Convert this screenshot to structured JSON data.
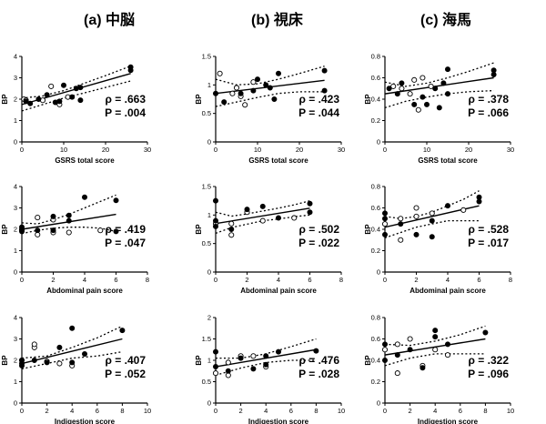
{
  "column_titles": [
    "(a) 中脳",
    "(b) 視床",
    "(c) 海馬"
  ],
  "chart_data": [
    {
      "type": "scatter",
      "panel": "a-GSRS",
      "ylabel": "BP",
      "xlabel": "GSRS total score",
      "xlim": [
        0,
        30
      ],
      "xticks": [
        0,
        10,
        20,
        30
      ],
      "ylim": [
        0,
        4
      ],
      "yticks": [
        0,
        1,
        2,
        3,
        4
      ],
      "rho": "ρ = .663",
      "p": "P = .004",
      "fit": [
        [
          0,
          1.75
        ],
        [
          26,
          3.2
        ]
      ],
      "ci_upper": [
        [
          0,
          2.05
        ],
        [
          5,
          2.15
        ],
        [
          10,
          2.4
        ],
        [
          15,
          2.75
        ],
        [
          20,
          3.1
        ],
        [
          26,
          3.55
        ]
      ],
      "ci_lower": [
        [
          0,
          1.45
        ],
        [
          5,
          1.75
        ],
        [
          10,
          2.05
        ],
        [
          15,
          2.3
        ],
        [
          20,
          2.55
        ],
        [
          26,
          2.85
        ]
      ],
      "filled": [
        [
          1,
          1.9
        ],
        [
          2,
          1.8
        ],
        [
          4,
          2.0
        ],
        [
          6,
          2.2
        ],
        [
          8,
          1.85
        ],
        [
          9,
          1.9
        ],
        [
          10,
          2.65
        ],
        [
          12,
          2.1
        ],
        [
          13,
          2.5
        ],
        [
          14,
          2.55
        ],
        [
          14,
          1.95
        ],
        [
          26,
          3.35
        ],
        [
          26,
          3.5
        ]
      ],
      "open": [
        [
          0.5,
          2.0
        ],
        [
          1,
          1.95
        ],
        [
          5,
          1.95
        ],
        [
          7,
          2.6
        ],
        [
          9,
          1.75
        ],
        [
          11,
          2.1
        ]
      ]
    },
    {
      "type": "scatter",
      "panel": "b-GSRS",
      "ylabel": "BP",
      "xlabel": "GSRS total score",
      "xlim": [
        0,
        30
      ],
      "xticks": [
        0,
        10,
        20,
        30
      ],
      "ylim": [
        0,
        1.5
      ],
      "yticks": [
        0.0,
        0.5,
        1.0,
        1.5
      ],
      "rho": "ρ = .423",
      "p": "P = .044",
      "fit": [
        [
          0,
          0.85
        ],
        [
          26,
          1.08
        ]
      ],
      "ci_upper": [
        [
          0,
          1.1
        ],
        [
          5,
          1.0
        ],
        [
          10,
          1.02
        ],
        [
          15,
          1.1
        ],
        [
          20,
          1.2
        ],
        [
          26,
          1.33
        ]
      ],
      "ci_lower": [
        [
          0,
          0.62
        ],
        [
          5,
          0.7
        ],
        [
          10,
          0.78
        ],
        [
          15,
          0.85
        ],
        [
          20,
          0.88
        ],
        [
          26,
          0.88
        ]
      ],
      "filled": [
        [
          0,
          0.85
        ],
        [
          2,
          0.7
        ],
        [
          6,
          0.85
        ],
        [
          9,
          0.9
        ],
        [
          10,
          1.1
        ],
        [
          12,
          1.0
        ],
        [
          13,
          0.95
        ],
        [
          14,
          0.75
        ],
        [
          15,
          1.2
        ],
        [
          26,
          1.25
        ],
        [
          26,
          0.9
        ]
      ],
      "open": [
        [
          1,
          1.2
        ],
        [
          4,
          0.85
        ],
        [
          5,
          0.95
        ],
        [
          6,
          0.8
        ],
        [
          7,
          0.65
        ],
        [
          9,
          1.05
        ]
      ]
    },
    {
      "type": "scatter",
      "panel": "c-GSRS",
      "ylabel": "BP",
      "xlabel": "GSRS total score",
      "xlim": [
        0,
        30
      ],
      "xticks": [
        0,
        10,
        20,
        30
      ],
      "ylim": [
        0,
        0.8
      ],
      "yticks": [
        0.0,
        0.2,
        0.4,
        0.6,
        0.8
      ],
      "rho": "ρ = .378",
      "p": "P = .066",
      "fit": [
        [
          0,
          0.45
        ],
        [
          26,
          0.6
        ]
      ],
      "ci_upper": [
        [
          0,
          0.56
        ],
        [
          5,
          0.52
        ],
        [
          10,
          0.55
        ],
        [
          15,
          0.6
        ],
        [
          20,
          0.66
        ],
        [
          26,
          0.74
        ]
      ],
      "ci_lower": [
        [
          0,
          0.32
        ],
        [
          5,
          0.38
        ],
        [
          10,
          0.42
        ],
        [
          15,
          0.45
        ],
        [
          20,
          0.47
        ],
        [
          26,
          0.48
        ]
      ],
      "filled": [
        [
          1,
          0.5
        ],
        [
          3,
          0.45
        ],
        [
          4,
          0.55
        ],
        [
          7,
          0.35
        ],
        [
          9,
          0.42
        ],
        [
          10,
          0.35
        ],
        [
          12,
          0.5
        ],
        [
          13,
          0.32
        ],
        [
          14,
          0.55
        ],
        [
          15,
          0.68
        ],
        [
          15,
          0.45
        ],
        [
          26,
          0.63
        ],
        [
          26,
          0.67
        ]
      ],
      "open": [
        [
          2,
          0.52
        ],
        [
          4,
          0.5
        ],
        [
          6,
          0.45
        ],
        [
          7,
          0.58
        ],
        [
          8,
          0.3
        ],
        [
          9,
          0.6
        ],
        [
          11,
          0.52
        ]
      ]
    },
    {
      "type": "scatter",
      "panel": "a-Abdominal",
      "ylabel": "BP",
      "xlabel": "Abdominal pain score",
      "xlim": [
        0,
        8
      ],
      "xticks": [
        0,
        2,
        4,
        6,
        8
      ],
      "ylim": [
        0,
        4
      ],
      "yticks": [
        0,
        1,
        2,
        3,
        4
      ],
      "rho": "ρ = .419",
      "p": "P = .047",
      "fit": [
        [
          0,
          2.0
        ],
        [
          6,
          2.7
        ]
      ],
      "ci_upper": [
        [
          0,
          2.3
        ],
        [
          1,
          2.25
        ],
        [
          2,
          2.45
        ],
        [
          3,
          2.7
        ],
        [
          4,
          3.0
        ],
        [
          5,
          3.3
        ],
        [
          6,
          3.6
        ]
      ],
      "ci_lower": [
        [
          0,
          1.8
        ],
        [
          1,
          1.95
        ],
        [
          2,
          2.05
        ],
        [
          3,
          2.1
        ],
        [
          4,
          2.1
        ],
        [
          5,
          2.05
        ],
        [
          6,
          1.9
        ]
      ],
      "filled": [
        [
          0,
          1.9
        ],
        [
          0,
          2.0
        ],
        [
          0,
          2.1
        ],
        [
          1,
          1.95
        ],
        [
          2,
          2.6
        ],
        [
          2,
          1.95
        ],
        [
          3,
          2.4
        ],
        [
          3,
          2.65
        ],
        [
          4,
          3.5
        ],
        [
          6,
          1.9
        ],
        [
          6,
          3.35
        ]
      ],
      "open": [
        [
          0,
          1.95
        ],
        [
          1,
          2.55
        ],
        [
          1,
          1.75
        ],
        [
          2,
          1.85
        ],
        [
          2,
          2.45
        ],
        [
          3,
          1.85
        ],
        [
          5,
          1.95
        ]
      ]
    },
    {
      "type": "scatter",
      "panel": "b-Abdominal",
      "ylabel": "BP",
      "xlabel": "Abdominal pain score",
      "xlim": [
        0,
        8
      ],
      "xticks": [
        0,
        2,
        4,
        6,
        8
      ],
      "ylim": [
        0,
        1.5
      ],
      "yticks": [
        0.0,
        0.5,
        1.0,
        1.5
      ],
      "rho": "ρ = .502",
      "p": "P = .022",
      "fit": [
        [
          0,
          0.85
        ],
        [
          6,
          1.12
        ]
      ],
      "ci_upper": [
        [
          0,
          1.05
        ],
        [
          1,
          0.98
        ],
        [
          2,
          1.02
        ],
        [
          3,
          1.07
        ],
        [
          4,
          1.12
        ],
        [
          5,
          1.18
        ],
        [
          6,
          1.25
        ]
      ],
      "ci_lower": [
        [
          0,
          0.68
        ],
        [
          1,
          0.78
        ],
        [
          2,
          0.84
        ],
        [
          3,
          0.9
        ],
        [
          4,
          0.93
        ],
        [
          5,
          0.97
        ],
        [
          6,
          1.0
        ]
      ],
      "filled": [
        [
          0,
          1.25
        ],
        [
          0,
          0.9
        ],
        [
          0,
          0.8
        ],
        [
          1,
          0.75
        ],
        [
          2,
          1.1
        ],
        [
          3,
          1.15
        ],
        [
          4,
          0.95
        ],
        [
          6,
          1.05
        ],
        [
          6,
          1.2
        ]
      ],
      "open": [
        [
          0,
          0.85
        ],
        [
          1,
          0.85
        ],
        [
          1,
          0.65
        ],
        [
          2,
          1.05
        ],
        [
          3,
          0.9
        ],
        [
          5,
          0.95
        ]
      ]
    },
    {
      "type": "scatter",
      "panel": "c-Abdominal",
      "ylabel": "BP",
      "xlabel": "Abdominal pain score",
      "xlim": [
        0,
        8
      ],
      "xticks": [
        0,
        2,
        4,
        6,
        8
      ],
      "ylim": [
        0,
        0.8
      ],
      "yticks": [
        0.0,
        0.2,
        0.4,
        0.6,
        0.8
      ],
      "rho": "ρ = .528",
      "p": "P = .017",
      "fit": [
        [
          0,
          0.42
        ],
        [
          6,
          0.62
        ]
      ],
      "ci_upper": [
        [
          0,
          0.52
        ],
        [
          1,
          0.5
        ],
        [
          2,
          0.52
        ],
        [
          3,
          0.56
        ],
        [
          4,
          0.62
        ],
        [
          5,
          0.68
        ],
        [
          6,
          0.76
        ]
      ],
      "ci_lower": [
        [
          0,
          0.32
        ],
        [
          1,
          0.37
        ],
        [
          2,
          0.42
        ],
        [
          3,
          0.45
        ],
        [
          4,
          0.48
        ],
        [
          5,
          0.48
        ],
        [
          6,
          0.48
        ]
      ],
      "filled": [
        [
          0,
          0.55
        ],
        [
          0,
          0.35
        ],
        [
          0,
          0.5
        ],
        [
          1,
          0.45
        ],
        [
          2,
          0.35
        ],
        [
          3,
          0.48
        ],
        [
          3,
          0.33
        ],
        [
          4,
          0.62
        ],
        [
          6,
          0.66
        ],
        [
          6,
          0.7
        ]
      ],
      "open": [
        [
          0,
          0.45
        ],
        [
          1,
          0.5
        ],
        [
          1,
          0.3
        ],
        [
          2,
          0.6
        ],
        [
          2,
          0.52
        ],
        [
          3,
          0.55
        ],
        [
          5,
          0.58
        ]
      ]
    },
    {
      "type": "scatter",
      "panel": "a-Indigestion",
      "ylabel": "BP",
      "xlabel": "Indigestion score",
      "xlim": [
        0,
        10
      ],
      "xticks": [
        0,
        2,
        4,
        6,
        8,
        10
      ],
      "ylim": [
        0,
        4
      ],
      "yticks": [
        0,
        1,
        2,
        3,
        4
      ],
      "rho": "ρ = .407",
      "p": "P = .052",
      "fit": [
        [
          0,
          1.85
        ],
        [
          8,
          3.0
        ]
      ],
      "ci_upper": [
        [
          0,
          2.1
        ],
        [
          2,
          2.2
        ],
        [
          4,
          2.6
        ],
        [
          6,
          3.05
        ],
        [
          8,
          3.6
        ]
      ],
      "ci_lower": [
        [
          0,
          1.6
        ],
        [
          2,
          1.85
        ],
        [
          4,
          2.1
        ],
        [
          6,
          2.2
        ],
        [
          8,
          2.4
        ]
      ],
      "filled": [
        [
          0,
          1.85
        ],
        [
          0,
          2.0
        ],
        [
          0,
          1.75
        ],
        [
          1,
          2.0
        ],
        [
          2,
          1.9
        ],
        [
          3,
          2.6
        ],
        [
          4,
          3.5
        ],
        [
          4,
          1.9
        ],
        [
          5,
          2.3
        ],
        [
          8,
          3.4
        ]
      ],
      "open": [
        [
          0,
          2.0
        ],
        [
          1,
          2.6
        ],
        [
          1,
          2.75
        ],
        [
          2,
          1.95
        ],
        [
          3,
          1.85
        ],
        [
          4,
          1.75
        ]
      ]
    },
    {
      "type": "scatter",
      "panel": "b-Indigestion",
      "ylabel": "BP",
      "xlabel": "Indigestion score",
      "xlim": [
        0,
        10
      ],
      "xticks": [
        0,
        2,
        4,
        6,
        8,
        10
      ],
      "ylim": [
        0,
        2.0
      ],
      "yticks": [
        0.0,
        0.5,
        1.0,
        1.5,
        2.0
      ],
      "rho": "ρ = .476",
      "p": "P = .028",
      "fit": [
        [
          0,
          0.85
        ],
        [
          8,
          1.25
        ]
      ],
      "ci_upper": [
        [
          0,
          1.05
        ],
        [
          2,
          1.05
        ],
        [
          4,
          1.15
        ],
        [
          6,
          1.32
        ],
        [
          8,
          1.5
        ]
      ],
      "ci_lower": [
        [
          0,
          0.65
        ],
        [
          2,
          0.82
        ],
        [
          4,
          0.95
        ],
        [
          6,
          1.0
        ],
        [
          8,
          1.0
        ]
      ],
      "filled": [
        [
          0,
          1.2
        ],
        [
          0,
          0.85
        ],
        [
          1,
          0.75
        ],
        [
          2,
          1.05
        ],
        [
          3,
          0.8
        ],
        [
          4,
          1.1
        ],
        [
          4,
          0.9
        ],
        [
          5,
          1.2
        ],
        [
          8,
          1.22
        ]
      ],
      "open": [
        [
          0,
          0.7
        ],
        [
          1,
          0.95
        ],
        [
          1,
          0.65
        ],
        [
          2,
          1.1
        ],
        [
          3,
          1.1
        ],
        [
          4,
          0.85
        ]
      ]
    },
    {
      "type": "scatter",
      "panel": "c-Indigestion",
      "ylabel": "BP",
      "xlabel": "Indigestion score",
      "xlim": [
        0,
        10
      ],
      "xticks": [
        0,
        2,
        4,
        6,
        8,
        10
      ],
      "ylim": [
        0,
        0.8
      ],
      "yticks": [
        0.0,
        0.2,
        0.4,
        0.6,
        0.8
      ],
      "rho": "ρ = .322",
      "p": "P = .096",
      "fit": [
        [
          0,
          0.45
        ],
        [
          8,
          0.6
        ]
      ],
      "ci_upper": [
        [
          0,
          0.55
        ],
        [
          2,
          0.54
        ],
        [
          4,
          0.58
        ],
        [
          6,
          0.64
        ],
        [
          8,
          0.72
        ]
      ],
      "ci_lower": [
        [
          0,
          0.35
        ],
        [
          2,
          0.42
        ],
        [
          4,
          0.46
        ],
        [
          6,
          0.46
        ],
        [
          8,
          0.46
        ]
      ],
      "filled": [
        [
          0,
          0.55
        ],
        [
          0,
          0.4
        ],
        [
          1,
          0.45
        ],
        [
          2,
          0.5
        ],
        [
          3,
          0.33
        ],
        [
          4,
          0.68
        ],
        [
          4,
          0.62
        ],
        [
          5,
          0.55
        ],
        [
          8,
          0.66
        ]
      ],
      "open": [
        [
          0,
          0.5
        ],
        [
          1,
          0.55
        ],
        [
          1,
          0.28
        ],
        [
          2,
          0.6
        ],
        [
          3,
          0.35
        ],
        [
          4,
          0.5
        ],
        [
          5,
          0.45
        ]
      ]
    }
  ]
}
